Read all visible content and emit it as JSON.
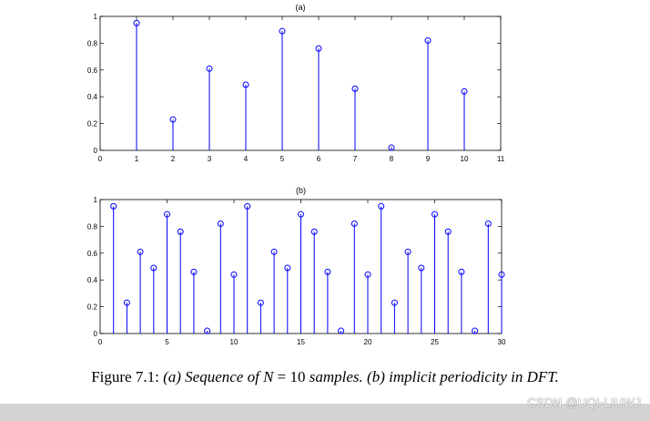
{
  "chart_data": [
    {
      "type": "stem",
      "title": "(a)",
      "x": [
        1,
        2,
        3,
        4,
        5,
        6,
        7,
        8,
        9,
        10
      ],
      "values": [
        0.95,
        0.23,
        0.61,
        0.49,
        0.89,
        0.76,
        0.46,
        0.02,
        0.82,
        0.44
      ],
      "xlim": [
        0,
        11
      ],
      "ylim": [
        0,
        1
      ],
      "xticks": [
        "0",
        "1",
        "2",
        "3",
        "4",
        "5",
        "6",
        "7",
        "8",
        "9",
        "10",
        "11"
      ],
      "yticks": [
        "0",
        "0.2",
        "0.4",
        "0.6",
        "0.8",
        "1"
      ],
      "color": "#0000ff"
    },
    {
      "type": "stem",
      "title": "(b)",
      "x": [
        1,
        2,
        3,
        4,
        5,
        6,
        7,
        8,
        9,
        10,
        11,
        12,
        13,
        14,
        15,
        16,
        17,
        18,
        19,
        20,
        21,
        22,
        23,
        24,
        25,
        26,
        27,
        28,
        29,
        30
      ],
      "values": [
        0.95,
        0.23,
        0.61,
        0.49,
        0.89,
        0.76,
        0.46,
        0.02,
        0.82,
        0.44,
        0.95,
        0.23,
        0.61,
        0.49,
        0.89,
        0.76,
        0.46,
        0.02,
        0.82,
        0.44,
        0.95,
        0.23,
        0.61,
        0.49,
        0.89,
        0.76,
        0.46,
        0.02,
        0.82,
        0.44
      ],
      "xlim": [
        0,
        30
      ],
      "ylim": [
        0,
        1
      ],
      "xticks": [
        "0",
        "5",
        "10",
        "15",
        "20",
        "25",
        "30"
      ],
      "yticks": [
        "0",
        "0.2",
        "0.4",
        "0.6",
        "0.8",
        "1"
      ],
      "color": "#0000ff"
    }
  ],
  "caption": {
    "label": "Figure 7.1:",
    "desc_before": "(a) Sequence of",
    "var_n": "N",
    "equals": "=",
    "n_value": "10",
    "desc_after": "samples. (b) implicit periodicity in DFT."
  },
  "watermark": "CSDN @UQI-LIUWJ"
}
